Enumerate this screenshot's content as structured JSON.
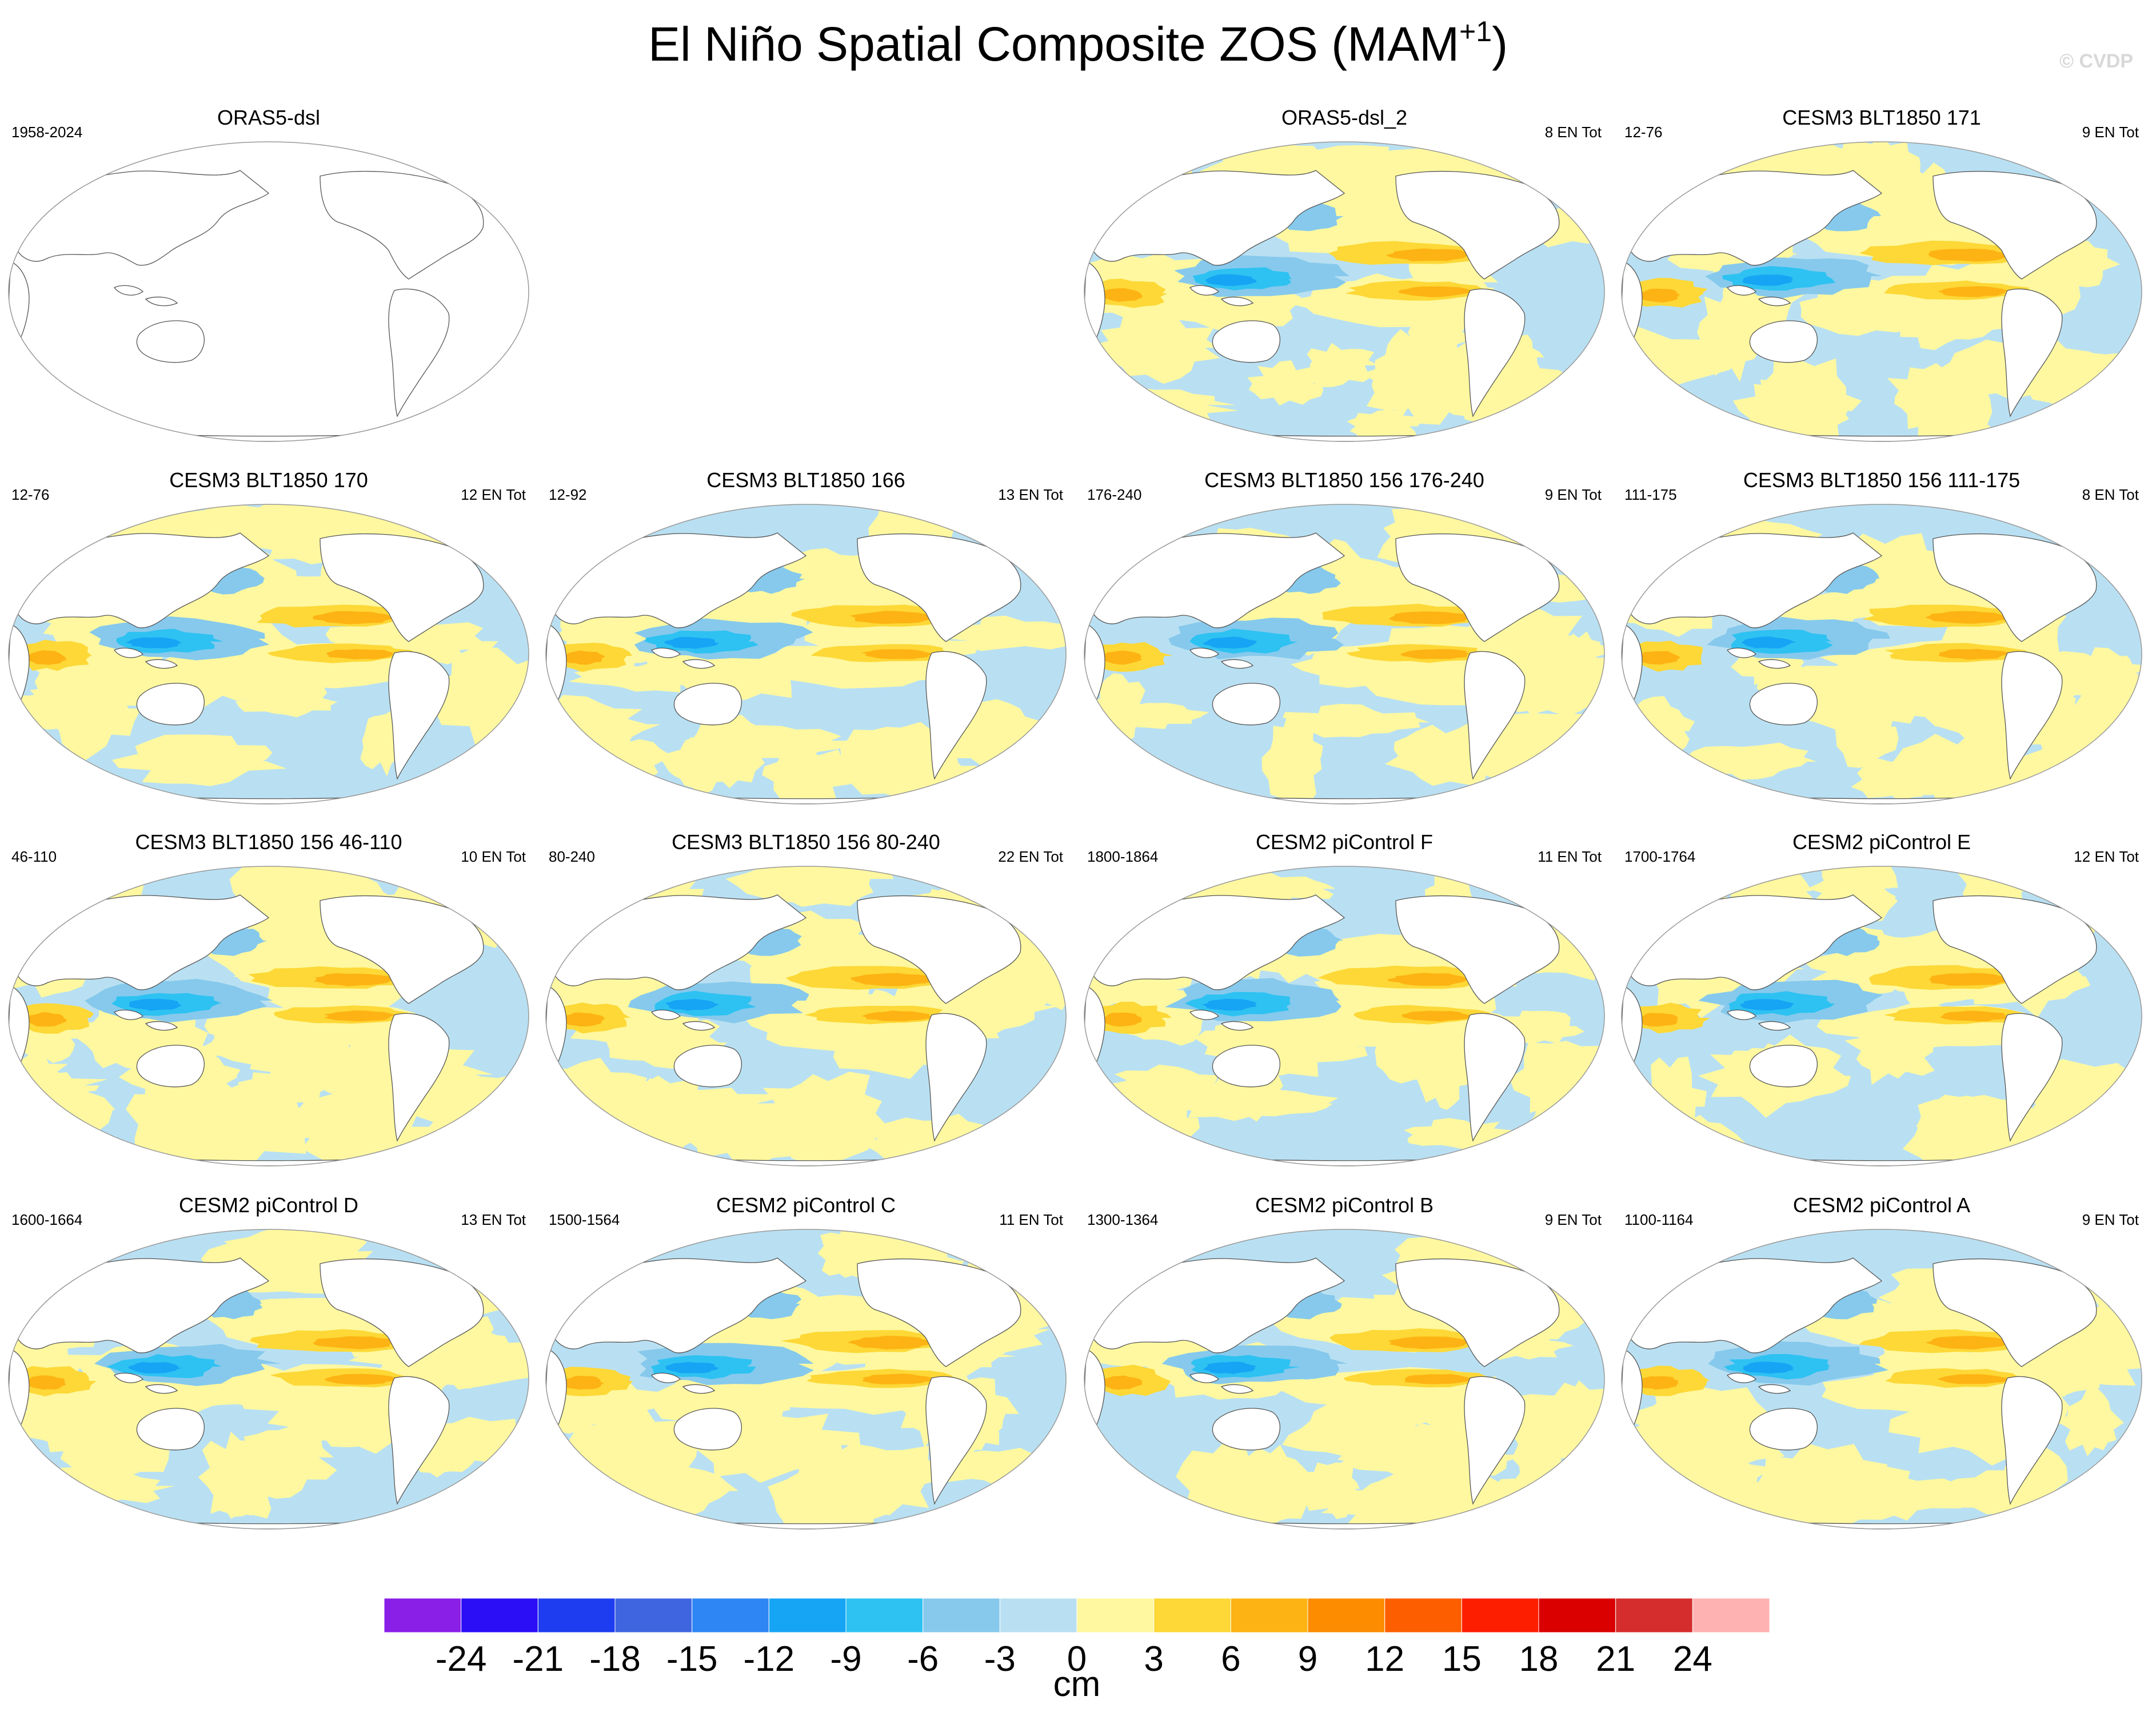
{
  "title_main": "El Niño Spatial Composite ZOS (MAM",
  "title_sup": "+1",
  "title_close": ")",
  "copyright": "© CVDP",
  "colorbar": {
    "units": "cm",
    "ticks": [
      "-24",
      "-21",
      "-18",
      "-15",
      "-12",
      "-9",
      "-6",
      "-3",
      "0",
      "3",
      "6",
      "9",
      "12",
      "15",
      "18",
      "21",
      "24"
    ],
    "colors": [
      "#8a1fe8",
      "#2b0ef5",
      "#1e3df0",
      "#3f66e0",
      "#2d86f4",
      "#16a4f5",
      "#2dc2f2",
      "#86c9ec",
      "#b9e0f2",
      "#fff8a0",
      "#fdd836",
      "#fdb313",
      "#fd8c00",
      "#fd5f00",
      "#fd1e00",
      "#da0000",
      "#d52d2d",
      "#ffb2b2"
    ]
  },
  "panels": [
    {
      "title": "ORAS5-dsl",
      "left": "1958-2024",
      "right": "",
      "empty": true
    },
    {
      "title": "ORAS5-dsl_2",
      "left": "",
      "right": "8 EN Tot",
      "empty": false
    },
    {
      "title": "CESM3 BLT1850 171",
      "left": "12-76",
      "right": "9 EN Tot",
      "empty": false
    },
    {
      "title": "CESM3 BLT1850 170",
      "left": "12-76",
      "right": "12 EN Tot",
      "empty": false
    },
    {
      "title": "CESM3 BLT1850 166",
      "left": "12-92",
      "right": "13 EN Tot",
      "empty": false
    },
    {
      "title": "CESM3 BLT1850 156 176-240",
      "left": "176-240",
      "right": "9 EN Tot",
      "empty": false
    },
    {
      "title": "CESM3 BLT1850 156 111-175",
      "left": "111-175",
      "right": "8 EN Tot",
      "empty": false
    },
    {
      "title": "CESM3 BLT1850 156 46-110",
      "left": "46-110",
      "right": "10 EN Tot",
      "empty": false
    },
    {
      "title": "CESM3 BLT1850 156 80-240",
      "left": "80-240",
      "right": "22 EN Tot",
      "empty": false
    },
    {
      "title": "CESM2 piControl F",
      "left": "1800-1864",
      "right": "11 EN Tot",
      "empty": false
    },
    {
      "title": "CESM2 piControl E",
      "left": "1700-1764",
      "right": "12 EN Tot",
      "empty": false
    },
    {
      "title": "CESM2 piControl D",
      "left": "1600-1664",
      "right": "13 EN Tot",
      "empty": false
    },
    {
      "title": "CESM2 piControl C",
      "left": "1500-1564",
      "right": "11 EN Tot",
      "empty": false
    },
    {
      "title": "CESM2 piControl B",
      "left": "1300-1364",
      "right": "9 EN Tot",
      "empty": false
    },
    {
      "title": "CESM2 piControl A",
      "left": "1100-1164",
      "right": "9 EN Tot",
      "empty": false
    }
  ]
}
